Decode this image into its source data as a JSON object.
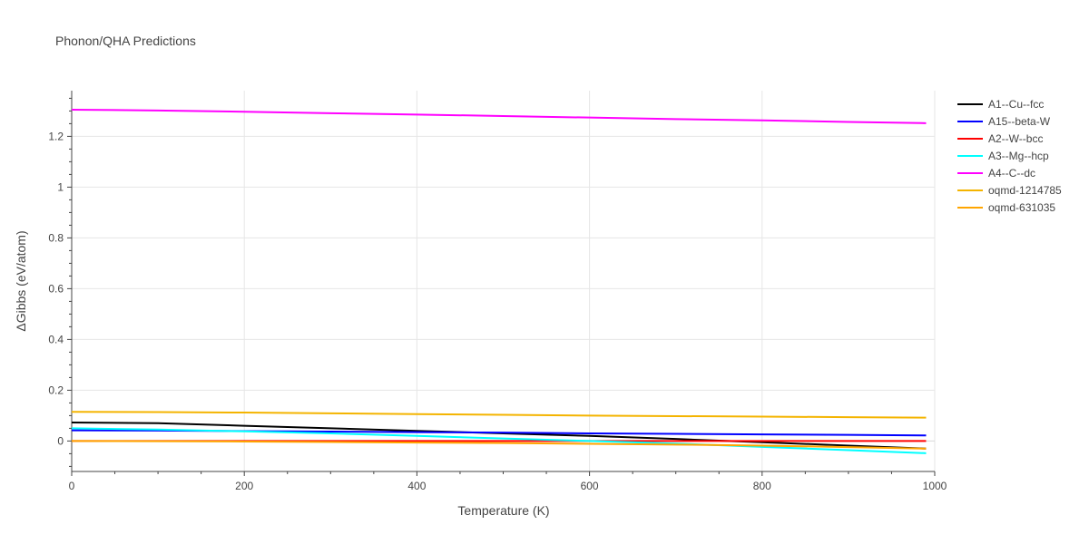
{
  "chart_data": {
    "type": "line",
    "title": "Phonon/QHA Predictions",
    "xlabel": "Temperature (K)",
    "ylabel": "ΔGibbs (eV/atom)",
    "xlim": [
      0,
      1000
    ],
    "ylim": [
      -0.12,
      1.38
    ],
    "x_ticks": [
      0,
      200,
      400,
      600,
      800,
      1000
    ],
    "x_tick_labels": [
      "0",
      "200",
      "400",
      "600",
      "800",
      "1000"
    ],
    "y_ticks": [
      0,
      0.2,
      0.4,
      0.6,
      0.8,
      1,
      1.2
    ],
    "y_tick_labels": [
      "0",
      "0.2",
      "0.4",
      "0.6",
      "0.8",
      "1",
      "1.2"
    ],
    "grid": true,
    "legend_position": "right",
    "series": [
      {
        "name": "A1--Cu--fcc",
        "color": "#000000",
        "x": [
          0,
          100,
          200,
          300,
          400,
          500,
          600,
          700,
          800,
          900,
          990
        ],
        "y": [
          0.073,
          0.07,
          0.06,
          0.05,
          0.04,
          0.03,
          0.02,
          0.008,
          -0.005,
          -0.018,
          -0.03
        ]
      },
      {
        "name": "A15--beta-W",
        "color": "#0000ff",
        "x": [
          0,
          100,
          200,
          300,
          400,
          500,
          600,
          700,
          800,
          900,
          990
        ],
        "y": [
          0.042,
          0.041,
          0.039,
          0.037,
          0.035,
          0.033,
          0.03,
          0.028,
          0.026,
          0.024,
          0.022
        ]
      },
      {
        "name": "A2--W--bcc",
        "color": "#ff0000",
        "x": [
          0,
          100,
          200,
          300,
          400,
          500,
          600,
          700,
          800,
          900,
          990
        ],
        "y": [
          0.0,
          0.0,
          0.0,
          0.0,
          0.0,
          0.0,
          0.0,
          0.0,
          0.0,
          0.0,
          0.0
        ]
      },
      {
        "name": "A3--Mg--hcp",
        "color": "#00ffff",
        "x": [
          0,
          100,
          200,
          300,
          400,
          500,
          600,
          700,
          800,
          900,
          990
        ],
        "y": [
          0.05,
          0.045,
          0.038,
          0.03,
          0.02,
          0.01,
          0.0,
          -0.01,
          -0.023,
          -0.036,
          -0.048
        ]
      },
      {
        "name": "A4--C--dc",
        "color": "#ff00ff",
        "x": [
          0,
          100,
          200,
          300,
          400,
          500,
          600,
          700,
          800,
          900,
          990
        ],
        "y": [
          1.305,
          1.302,
          1.297,
          1.291,
          1.286,
          1.28,
          1.274,
          1.268,
          1.263,
          1.257,
          1.252
        ]
      },
      {
        "name": "oqmd-1214785",
        "color": "#f4b400",
        "x": [
          0,
          100,
          200,
          300,
          400,
          500,
          600,
          700,
          800,
          900,
          990
        ],
        "y": [
          0.115,
          0.114,
          0.112,
          0.109,
          0.106,
          0.103,
          0.1,
          0.098,
          0.096,
          0.094,
          0.092
        ]
      },
      {
        "name": "oqmd-631035",
        "color": "#ffa500",
        "x": [
          0,
          100,
          200,
          300,
          400,
          500,
          600,
          700,
          800,
          900,
          990
        ],
        "y": [
          0.0,
          -0.001,
          -0.002,
          -0.004,
          -0.006,
          -0.008,
          -0.011,
          -0.014,
          -0.018,
          -0.024,
          -0.03
        ]
      }
    ]
  }
}
